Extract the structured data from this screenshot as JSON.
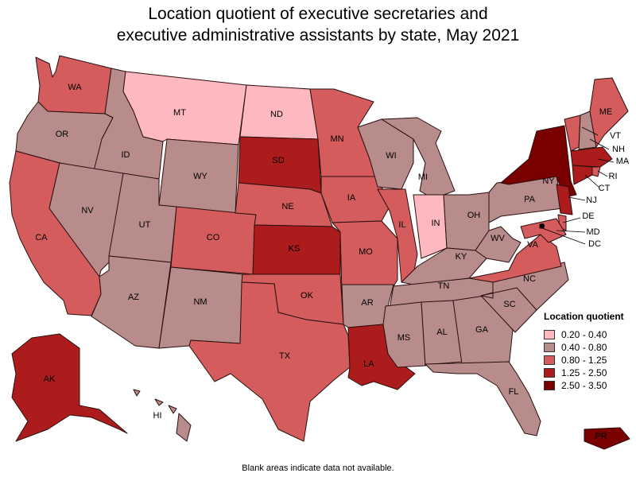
{
  "title": {
    "line1": "Location quotient of executive secretaries and",
    "line2": "executive administrative assistants by state, May 2021"
  },
  "legend": {
    "title": "Location quotient",
    "items": [
      {
        "label": "0.20 - 0.40",
        "color": "#fdb9bf"
      },
      {
        "label": "0.40 - 0.80",
        "color": "#b98c8c"
      },
      {
        "label": "0.80 - 1.25",
        "color": "#d45c5c"
      },
      {
        "label": "1.25 - 2.50",
        "color": "#ad1c1c"
      },
      {
        "label": "2.50 - 3.50",
        "color": "#7a0000"
      }
    ]
  },
  "footnote": "Blank areas indicate data not available.",
  "map_data": {
    "states": [
      {
        "abbr": "WA",
        "bin": 2
      },
      {
        "abbr": "OR",
        "bin": 1
      },
      {
        "abbr": "CA",
        "bin": 2
      },
      {
        "abbr": "ID",
        "bin": 1
      },
      {
        "abbr": "NV",
        "bin": 1
      },
      {
        "abbr": "MT",
        "bin": 0
      },
      {
        "abbr": "WY",
        "bin": 1
      },
      {
        "abbr": "UT",
        "bin": 1
      },
      {
        "abbr": "AZ",
        "bin": 1
      },
      {
        "abbr": "CO",
        "bin": 2
      },
      {
        "abbr": "NM",
        "bin": 1
      },
      {
        "abbr": "ND",
        "bin": 0
      },
      {
        "abbr": "SD",
        "bin": 3
      },
      {
        "abbr": "NE",
        "bin": 2
      },
      {
        "abbr": "KS",
        "bin": 3
      },
      {
        "abbr": "OK",
        "bin": 2
      },
      {
        "abbr": "TX",
        "bin": 2
      },
      {
        "abbr": "MN",
        "bin": 2
      },
      {
        "abbr": "IA",
        "bin": 2
      },
      {
        "abbr": "MO",
        "bin": 2
      },
      {
        "abbr": "AR",
        "bin": 1
      },
      {
        "abbr": "LA",
        "bin": 3
      },
      {
        "abbr": "WI",
        "bin": 1
      },
      {
        "abbr": "IL",
        "bin": 2
      },
      {
        "abbr": "MI",
        "bin": 1
      },
      {
        "abbr": "IN",
        "bin": 0
      },
      {
        "abbr": "OH",
        "bin": 1
      },
      {
        "abbr": "KY",
        "bin": 1
      },
      {
        "abbr": "TN",
        "bin": 1
      },
      {
        "abbr": "MS",
        "bin": 1
      },
      {
        "abbr": "AL",
        "bin": 1
      },
      {
        "abbr": "GA",
        "bin": 1
      },
      {
        "abbr": "FL",
        "bin": 1
      },
      {
        "abbr": "SC",
        "bin": 1
      },
      {
        "abbr": "NC",
        "bin": 1
      },
      {
        "abbr": "VA",
        "bin": 2
      },
      {
        "abbr": "WV",
        "bin": 1
      },
      {
        "abbr": "PA",
        "bin": 1
      },
      {
        "abbr": "NY",
        "bin": 4
      },
      {
        "abbr": "VT",
        "bin": 2
      },
      {
        "abbr": "NH",
        "bin": 1
      },
      {
        "abbr": "ME",
        "bin": 2
      },
      {
        "abbr": "MA",
        "bin": 3
      },
      {
        "abbr": "RI",
        "bin": 2
      },
      {
        "abbr": "CT",
        "bin": 3
      },
      {
        "abbr": "NJ",
        "bin": 3
      },
      {
        "abbr": "DE",
        "bin": 2
      },
      {
        "abbr": "MD",
        "bin": 2
      },
      {
        "abbr": "DC",
        "bin": 4
      },
      {
        "abbr": "AK",
        "bin": 3
      },
      {
        "abbr": "HI",
        "bin": 1
      },
      {
        "abbr": "PR",
        "bin": 4
      }
    ]
  }
}
